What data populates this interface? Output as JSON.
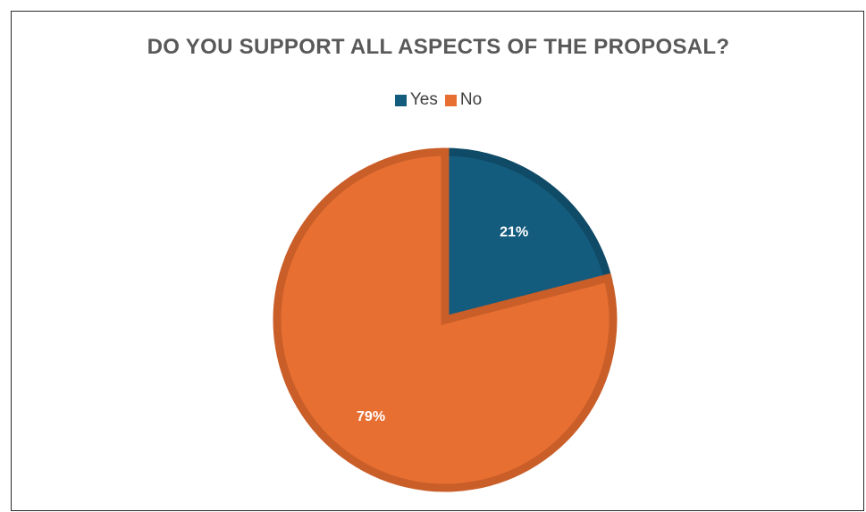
{
  "chart_data": {
    "type": "pie",
    "title": "DO YOU SUPPORT ALL ASPECTS OF THE PROPOSAL?",
    "categories": [
      "Yes",
      "No"
    ],
    "values": [
      21,
      79
    ],
    "labels": [
      "21%",
      "79%"
    ],
    "colors": [
      "#145c7d",
      "#e86f32"
    ],
    "edge_colors": [
      "#0f4a66",
      "#c95e29"
    ],
    "legend_position": "top"
  }
}
